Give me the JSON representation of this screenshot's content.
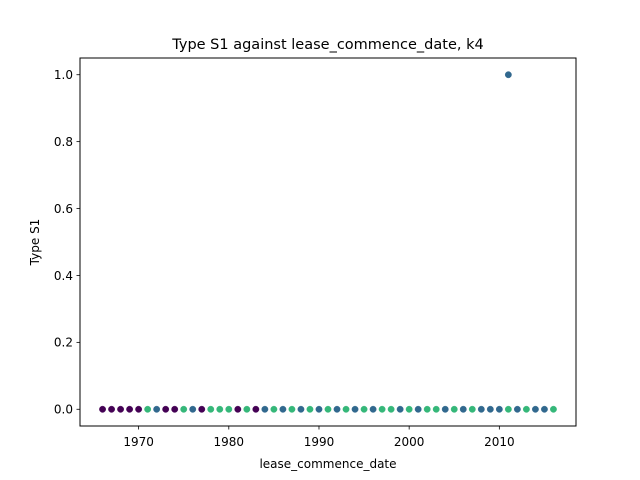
{
  "chart_data": {
    "type": "scatter",
    "title": "Type S1 against lease_commence_date, k4",
    "xlabel": "lease_commence_date",
    "ylabel": "Type S1",
    "xlim": [
      1963.5,
      2018.5
    ],
    "ylim": [
      -0.05,
      1.05
    ],
    "xticks": [
      1970,
      1980,
      1990,
      2000,
      2010
    ],
    "yticks": [
      0.0,
      0.2,
      0.4,
      0.6,
      0.8,
      1.0
    ],
    "xtick_labels": [
      "1970",
      "1980",
      "1990",
      "2000",
      "2010"
    ],
    "ytick_labels": [
      "0.0",
      "0.2",
      "0.4",
      "0.6",
      "0.8",
      "1.0"
    ],
    "grid": false,
    "colors": {
      "cluster_purple": "#440154",
      "cluster_blue": "#31688e",
      "cluster_green": "#35b779"
    },
    "points": [
      {
        "x": 1966,
        "y": 0,
        "color": "#440154"
      },
      {
        "x": 1967,
        "y": 0,
        "color": "#440154"
      },
      {
        "x": 1968,
        "y": 0,
        "color": "#440154"
      },
      {
        "x": 1969,
        "y": 0,
        "color": "#440154"
      },
      {
        "x": 1970,
        "y": 0,
        "color": "#440154"
      },
      {
        "x": 1971,
        "y": 0,
        "color": "#35b779"
      },
      {
        "x": 1972,
        "y": 0,
        "color": "#31688e"
      },
      {
        "x": 1973,
        "y": 0,
        "color": "#440154"
      },
      {
        "x": 1974,
        "y": 0,
        "color": "#440154"
      },
      {
        "x": 1975,
        "y": 0,
        "color": "#35b779"
      },
      {
        "x": 1976,
        "y": 0,
        "color": "#31688e"
      },
      {
        "x": 1977,
        "y": 0,
        "color": "#440154"
      },
      {
        "x": 1978,
        "y": 0,
        "color": "#35b779"
      },
      {
        "x": 1979,
        "y": 0,
        "color": "#35b779"
      },
      {
        "x": 1980,
        "y": 0,
        "color": "#35b779"
      },
      {
        "x": 1981,
        "y": 0,
        "color": "#440154"
      },
      {
        "x": 1982,
        "y": 0,
        "color": "#35b779"
      },
      {
        "x": 1983,
        "y": 0,
        "color": "#440154"
      },
      {
        "x": 1984,
        "y": 0,
        "color": "#31688e"
      },
      {
        "x": 1985,
        "y": 0,
        "color": "#35b779"
      },
      {
        "x": 1986,
        "y": 0,
        "color": "#31688e"
      },
      {
        "x": 1987,
        "y": 0,
        "color": "#35b779"
      },
      {
        "x": 1988,
        "y": 0,
        "color": "#31688e"
      },
      {
        "x": 1989,
        "y": 0,
        "color": "#35b779"
      },
      {
        "x": 1990,
        "y": 0,
        "color": "#31688e"
      },
      {
        "x": 1991,
        "y": 0,
        "color": "#35b779"
      },
      {
        "x": 1992,
        "y": 0,
        "color": "#31688e"
      },
      {
        "x": 1993,
        "y": 0,
        "color": "#35b779"
      },
      {
        "x": 1994,
        "y": 0,
        "color": "#31688e"
      },
      {
        "x": 1995,
        "y": 0,
        "color": "#35b779"
      },
      {
        "x": 1996,
        "y": 0,
        "color": "#31688e"
      },
      {
        "x": 1997,
        "y": 0,
        "color": "#35b779"
      },
      {
        "x": 1998,
        "y": 0,
        "color": "#35b779"
      },
      {
        "x": 1999,
        "y": 0,
        "color": "#31688e"
      },
      {
        "x": 2000,
        "y": 0,
        "color": "#35b779"
      },
      {
        "x": 2001,
        "y": 0,
        "color": "#31688e"
      },
      {
        "x": 2002,
        "y": 0,
        "color": "#35b779"
      },
      {
        "x": 2003,
        "y": 0,
        "color": "#35b779"
      },
      {
        "x": 2004,
        "y": 0,
        "color": "#31688e"
      },
      {
        "x": 2005,
        "y": 0,
        "color": "#35b779"
      },
      {
        "x": 2006,
        "y": 0,
        "color": "#31688e"
      },
      {
        "x": 2007,
        "y": 0,
        "color": "#35b779"
      },
      {
        "x": 2008,
        "y": 0,
        "color": "#31688e"
      },
      {
        "x": 2009,
        "y": 0,
        "color": "#31688e"
      },
      {
        "x": 2010,
        "y": 0,
        "color": "#31688e"
      },
      {
        "x": 2011,
        "y": 0,
        "color": "#35b779"
      },
      {
        "x": 2012,
        "y": 0,
        "color": "#31688e"
      },
      {
        "x": 2013,
        "y": 0,
        "color": "#35b779"
      },
      {
        "x": 2014,
        "y": 0,
        "color": "#31688e"
      },
      {
        "x": 2015,
        "y": 0,
        "color": "#31688e"
      },
      {
        "x": 2016,
        "y": 0,
        "color": "#35b779"
      },
      {
        "x": 2011,
        "y": 1,
        "color": "#31688e"
      }
    ]
  }
}
